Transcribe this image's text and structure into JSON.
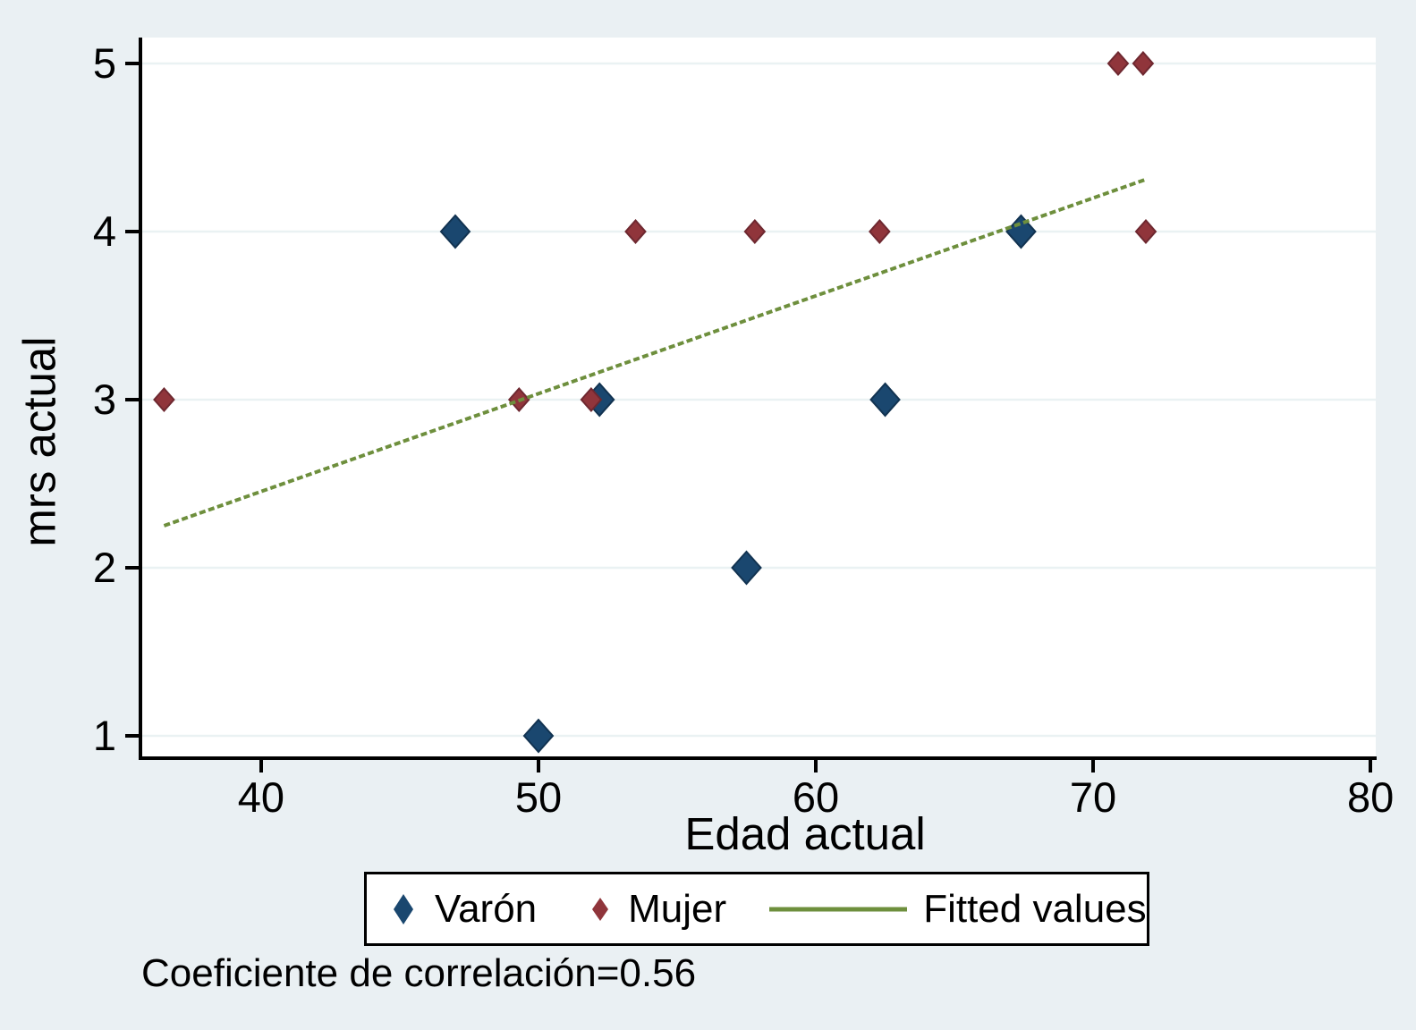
{
  "colors": {
    "page_background": "#eaf0f3",
    "plot_background": "#ffffff",
    "gridline": "#eaf2f3",
    "axis": "#000000",
    "varon": "#1a476f",
    "varon_edge": "#123351",
    "mujer": "#90353b",
    "mujer_edge": "#6e2830",
    "fitted": "#6e8f3d",
    "text": "#000000"
  },
  "chart_data": {
    "type": "scatter",
    "title": "",
    "xlabel": "Edad actual",
    "ylabel": "mrs actual",
    "xlim": [
      35.68,
      80.19
    ],
    "ylim": [
      0.867,
      5.154
    ],
    "xticks": [
      40,
      50,
      60,
      70,
      80
    ],
    "yticks": [
      1,
      2,
      3,
      4,
      5
    ],
    "grid": "horizontal-only",
    "legend_position": "bottom",
    "series": [
      {
        "name": "Varón",
        "type": "scatter",
        "marker": "diamond",
        "color": "#1a476f",
        "points": [
          [
            47,
            4
          ],
          [
            52.2,
            3
          ],
          [
            62.5,
            3
          ],
          [
            67.4,
            4
          ],
          [
            57.5,
            2
          ],
          [
            50,
            1
          ]
        ]
      },
      {
        "name": "Mujer",
        "type": "scatter",
        "marker": "diamond",
        "color": "#90353b",
        "points": [
          [
            36.5,
            3
          ],
          [
            49.3,
            3
          ],
          [
            51.9,
            3
          ],
          [
            53.5,
            4
          ],
          [
            57.8,
            4
          ],
          [
            62.3,
            4
          ],
          [
            70.9,
            5
          ],
          [
            71.8,
            5
          ],
          [
            71.9,
            4
          ]
        ]
      },
      {
        "name": "Fitted values",
        "type": "line",
        "style": "dashed",
        "color": "#6e8f3d",
        "points": [
          [
            36.5,
            2.25
          ],
          [
            71.9,
            4.31
          ]
        ]
      }
    ],
    "caption": "Coeficiente de correlación=0.56"
  }
}
